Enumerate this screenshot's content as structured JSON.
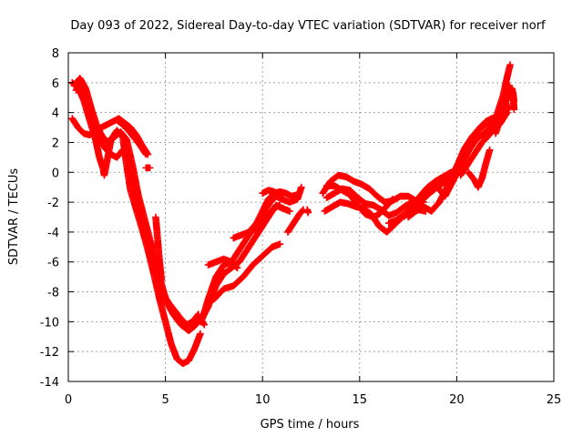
{
  "chart_data": {
    "type": "scatter",
    "title": "Day 093 of 2022, Sidereal Day-to-day VTEC variation (SDTVAR) for receiver norf",
    "xlabel": "GPS time / hours",
    "ylabel": "SDTVAR / TECUs",
    "xlim": [
      0,
      25
    ],
    "ylim": [
      -14,
      8
    ],
    "xticks": [
      "0",
      "5",
      "10",
      "15",
      "20",
      "25"
    ],
    "yticks": [
      "8",
      "6",
      "4",
      "2",
      "0",
      "-2",
      "-4",
      "-6",
      "-8",
      "-10",
      "-12",
      "-14"
    ],
    "grid": true,
    "legend": "none",
    "marker": "plus",
    "series_color": "#ff0000",
    "series": [
      {
        "points": [
          [
            0.2,
            6.0
          ],
          [
            0.5,
            5.7
          ],
          [
            0.8,
            4.8
          ],
          [
            1.1,
            3.5
          ],
          [
            1.4,
            2.2
          ],
          [
            1.6,
            1.0
          ],
          [
            1.8,
            0.2
          ],
          [
            1.85,
            -0.2
          ],
          [
            2.0,
            0.8
          ],
          [
            2.2,
            2.2
          ],
          [
            2.5,
            2.8
          ],
          [
            2.8,
            2.4
          ],
          [
            3.0,
            0.5
          ],
          [
            3.2,
            -1.2
          ],
          [
            3.5,
            -2.5
          ],
          [
            3.8,
            -3.8
          ],
          [
            4.1,
            -5.2
          ],
          [
            4.4,
            -6.8
          ],
          [
            4.7,
            -8.5
          ],
          [
            5.0,
            -10.0
          ],
          [
            5.3,
            -11.5
          ],
          [
            5.6,
            -12.5
          ],
          [
            5.9,
            -12.8
          ],
          [
            6.2,
            -12.6
          ],
          [
            6.5,
            -11.8
          ],
          [
            6.8,
            -10.8
          ]
        ]
      },
      {
        "points": [
          [
            0.3,
            5.8
          ],
          [
            0.6,
            6.3
          ],
          [
            0.9,
            5.6
          ],
          [
            1.2,
            4.2
          ],
          [
            1.5,
            3.0
          ],
          [
            1.8,
            2.3
          ],
          [
            2.1,
            2.0
          ],
          [
            2.4,
            2.4
          ],
          [
            2.7,
            2.7
          ],
          [
            3.0,
            2.2
          ],
          [
            3.3,
            0.5
          ],
          [
            3.6,
            -1.5
          ],
          [
            3.9,
            -3.0
          ],
          [
            4.2,
            -4.5
          ],
          [
            4.5,
            -6.0
          ],
          [
            4.8,
            -7.5
          ],
          [
            5.1,
            -8.8
          ],
          [
            5.4,
            -9.5
          ],
          [
            5.8,
            -10.2
          ],
          [
            6.2,
            -10.6
          ],
          [
            6.5,
            -10.3
          ],
          [
            6.8,
            -9.8
          ],
          [
            7.0,
            -10.2
          ]
        ]
      },
      {
        "points": [
          [
            0.4,
            5.5
          ],
          [
            0.7,
            6.0
          ],
          [
            1.0,
            4.8
          ],
          [
            1.3,
            3.3
          ],
          [
            1.6,
            2.3
          ],
          [
            1.9,
            1.6
          ],
          [
            2.2,
            1.2
          ],
          [
            2.5,
            1.0
          ],
          [
            2.8,
            1.5
          ],
          [
            3.1,
            1.0
          ],
          [
            3.4,
            -0.8
          ],
          [
            3.7,
            -2.5
          ],
          [
            4.0,
            -4.2
          ],
          [
            4.3,
            -5.8
          ],
          [
            4.6,
            -7.2
          ],
          [
            4.9,
            -8.2
          ],
          [
            5.2,
            -8.8
          ],
          [
            5.5,
            -9.3
          ],
          [
            5.8,
            -9.8
          ],
          [
            6.1,
            -10.2
          ],
          [
            6.4,
            -10.0
          ],
          [
            6.7,
            -9.5
          ]
        ]
      },
      {
        "points": [
          [
            0.2,
            3.6
          ],
          [
            0.5,
            3.0
          ],
          [
            0.8,
            2.6
          ],
          [
            1.1,
            2.5
          ],
          [
            1.4,
            2.8
          ],
          [
            1.7,
            3.0
          ],
          [
            2.0,
            3.2
          ],
          [
            2.3,
            3.4
          ],
          [
            2.6,
            3.6
          ],
          [
            2.9,
            3.3
          ],
          [
            3.2,
            3.0
          ],
          [
            3.5,
            2.5
          ],
          [
            3.8,
            1.8
          ],
          [
            4.1,
            1.2
          ]
        ]
      },
      {
        "points": [
          [
            2.5,
            3.5
          ],
          [
            2.8,
            3.2
          ],
          [
            3.1,
            2.8
          ],
          [
            3.4,
            2.3
          ],
          [
            3.7,
            1.8
          ],
          [
            4.0,
            1.2
          ]
        ]
      },
      {
        "points": [
          [
            4.0,
            0.3
          ],
          [
            4.2,
            0.3
          ]
        ]
      },
      {
        "points": [
          [
            4.5,
            -3.0
          ],
          [
            4.6,
            -4.5
          ],
          [
            4.7,
            -6.0
          ],
          [
            4.8,
            -7.2
          ]
        ]
      },
      {
        "points": [
          [
            7.2,
            -6.2
          ],
          [
            7.6,
            -6.0
          ],
          [
            8.0,
            -5.8
          ],
          [
            8.4,
            -6.0
          ],
          [
            8.7,
            -6.4
          ]
        ]
      },
      {
        "points": [
          [
            6.9,
            -9.8
          ],
          [
            7.2,
            -8.5
          ],
          [
            7.6,
            -7.0
          ],
          [
            8.0,
            -6.2
          ],
          [
            8.4,
            -6.0
          ],
          [
            8.8,
            -5.2
          ],
          [
            9.2,
            -4.4
          ],
          [
            9.6,
            -3.6
          ],
          [
            10.0,
            -2.8
          ],
          [
            10.4,
            -2.0
          ],
          [
            10.7,
            -1.6
          ],
          [
            11.0,
            -1.8
          ],
          [
            11.4,
            -2.0
          ],
          [
            11.8,
            -1.8
          ],
          [
            12.0,
            -1.0
          ]
        ]
      },
      {
        "points": [
          [
            6.8,
            -10.0
          ],
          [
            7.2,
            -9.0
          ],
          [
            7.6,
            -7.6
          ],
          [
            8.0,
            -6.8
          ],
          [
            8.4,
            -6.4
          ],
          [
            8.8,
            -6.0
          ],
          [
            9.2,
            -5.2
          ],
          [
            9.6,
            -4.4
          ],
          [
            10.0,
            -3.6
          ],
          [
            10.4,
            -2.8
          ],
          [
            10.7,
            -2.2
          ],
          [
            11.0,
            -2.4
          ],
          [
            11.4,
            -2.6
          ]
        ]
      },
      {
        "points": [
          [
            7.5,
            -8.5
          ],
          [
            8.0,
            -7.8
          ],
          [
            8.5,
            -7.6
          ],
          [
            9.0,
            -7.0
          ],
          [
            9.5,
            -6.2
          ],
          [
            10.0,
            -5.6
          ],
          [
            10.5,
            -5.0
          ],
          [
            10.9,
            -4.8
          ]
        ]
      },
      {
        "points": [
          [
            8.5,
            -4.4
          ],
          [
            8.9,
            -4.2
          ],
          [
            9.3,
            -4.0
          ],
          [
            9.7,
            -3.4
          ],
          [
            10.0,
            -2.6
          ],
          [
            10.3,
            -1.8
          ],
          [
            10.6,
            -1.4
          ],
          [
            10.9,
            -1.3
          ],
          [
            11.2,
            -1.4
          ],
          [
            11.5,
            -1.6
          ],
          [
            11.8,
            -1.5
          ]
        ]
      },
      {
        "points": [
          [
            9.6,
            -3.9
          ],
          [
            10.0,
            -3.3
          ],
          [
            10.3,
            -2.8
          ],
          [
            10.6,
            -2.4
          ],
          [
            10.9,
            -2.2
          ]
        ]
      },
      {
        "points": [
          [
            10.0,
            -1.4
          ],
          [
            10.3,
            -1.2
          ],
          [
            10.6,
            -1.3
          ],
          [
            10.9,
            -1.6
          ]
        ]
      },
      {
        "points": [
          [
            11.3,
            -4.0
          ],
          [
            11.6,
            -3.4
          ],
          [
            11.9,
            -2.8
          ],
          [
            12.1,
            -2.5
          ]
        ]
      },
      {
        "points": [
          [
            12.3,
            -2.5
          ],
          [
            12.35,
            -2.7
          ]
        ]
      },
      {
        "points": [
          [
            13.1,
            -1.4
          ],
          [
            13.5,
            -0.6
          ],
          [
            13.9,
            -0.2
          ],
          [
            14.3,
            -0.3
          ],
          [
            14.7,
            -0.6
          ],
          [
            15.1,
            -0.8
          ],
          [
            15.5,
            -1.1
          ],
          [
            15.9,
            -1.6
          ],
          [
            16.3,
            -2.0
          ],
          [
            16.7,
            -1.9
          ],
          [
            17.1,
            -1.6
          ],
          [
            17.5,
            -1.6
          ],
          [
            17.9,
            -1.9
          ],
          [
            18.3,
            -2.0
          ]
        ]
      },
      {
        "points": [
          [
            13.2,
            -2.6
          ],
          [
            13.6,
            -2.3
          ],
          [
            14.0,
            -2.0
          ],
          [
            14.4,
            -2.1
          ],
          [
            14.8,
            -2.3
          ],
          [
            15.2,
            -2.4
          ],
          [
            15.6,
            -2.8
          ],
          [
            16.0,
            -3.6
          ],
          [
            16.4,
            -4.0
          ],
          [
            16.8,
            -3.5
          ],
          [
            17.2,
            -3.0
          ],
          [
            17.6,
            -2.7
          ],
          [
            18.0,
            -2.5
          ],
          [
            18.4,
            -2.6
          ]
        ]
      },
      {
        "points": [
          [
            13.3,
            -1.7
          ],
          [
            13.7,
            -1.4
          ],
          [
            14.1,
            -1.1
          ],
          [
            14.5,
            -1.2
          ],
          [
            14.9,
            -1.7
          ],
          [
            15.3,
            -2.1
          ],
          [
            15.7,
            -2.2
          ],
          [
            16.1,
            -2.5
          ],
          [
            16.5,
            -2.9
          ],
          [
            16.9,
            -2.7
          ],
          [
            17.3,
            -2.3
          ],
          [
            17.7,
            -2.0
          ],
          [
            18.1,
            -2.2
          ]
        ]
      },
      {
        "points": [
          [
            13.3,
            -0.9
          ],
          [
            13.7,
            -0.9
          ],
          [
            14.1,
            -1.2
          ],
          [
            14.5,
            -1.5
          ],
          [
            14.9,
            -2.2
          ],
          [
            15.3,
            -2.8
          ],
          [
            15.7,
            -3.0
          ],
          [
            16.0,
            -2.8
          ],
          [
            16.3,
            -2.4
          ],
          [
            16.7,
            -1.8
          ]
        ]
      },
      {
        "points": [
          [
            16.5,
            -3.4
          ],
          [
            16.9,
            -3.2
          ],
          [
            17.3,
            -2.8
          ],
          [
            17.7,
            -2.3
          ],
          [
            18.1,
            -1.6
          ],
          [
            18.5,
            -1.0
          ],
          [
            18.9,
            -0.6
          ],
          [
            19.3,
            -0.3
          ],
          [
            19.7,
            0.0
          ]
        ]
      },
      {
        "points": [
          [
            17.5,
            -3.0
          ],
          [
            17.9,
            -2.6
          ],
          [
            18.3,
            -2.3
          ],
          [
            18.7,
            -2.6
          ],
          [
            19.1,
            -2.0
          ],
          [
            19.5,
            -1.0
          ],
          [
            19.9,
            0.0
          ],
          [
            20.3,
            1.0
          ],
          [
            20.7,
            2.0
          ],
          [
            21.1,
            2.8
          ],
          [
            21.5,
            3.2
          ],
          [
            21.9,
            3.4
          ],
          [
            22.3,
            3.6
          ],
          [
            22.7,
            4.4
          ]
        ]
      },
      {
        "points": [
          [
            17.8,
            -2.2
          ],
          [
            18.2,
            -1.9
          ],
          [
            18.6,
            -1.4
          ],
          [
            19.0,
            -1.0
          ],
          [
            19.4,
            -1.6
          ],
          [
            19.8,
            -0.6
          ],
          [
            20.2,
            0.4
          ],
          [
            20.6,
            1.4
          ],
          [
            21.0,
            2.2
          ],
          [
            21.4,
            2.6
          ],
          [
            21.8,
            3.0
          ],
          [
            22.2,
            3.2
          ],
          [
            22.6,
            4.0
          ]
        ]
      },
      {
        "points": [
          [
            18.4,
            -1.6
          ],
          [
            18.8,
            -1.1
          ],
          [
            19.2,
            -0.8
          ],
          [
            19.6,
            -0.5
          ],
          [
            20.0,
            0.4
          ],
          [
            20.4,
            1.6
          ],
          [
            20.8,
            2.4
          ],
          [
            21.2,
            3.0
          ],
          [
            21.6,
            3.4
          ],
          [
            22.0,
            3.2
          ],
          [
            22.3,
            3.6
          ]
        ]
      },
      {
        "points": [
          [
            20.2,
            -0.2
          ],
          [
            20.6,
            0.6
          ],
          [
            21.0,
            1.4
          ],
          [
            21.3,
            2.0
          ],
          [
            21.6,
            2.4
          ],
          [
            22.0,
            3.0
          ],
          [
            22.3,
            3.4
          ]
        ]
      },
      {
        "points": [
          [
            20.6,
            0.0
          ],
          [
            20.9,
            -0.5
          ],
          [
            21.1,
            -1.0
          ],
          [
            21.3,
            -0.4
          ],
          [
            21.5,
            0.6
          ],
          [
            21.7,
            1.5
          ]
        ]
      },
      {
        "points": [
          [
            21.2,
            3.0
          ],
          [
            21.5,
            3.4
          ],
          [
            21.8,
            3.6
          ],
          [
            22.1,
            3.7
          ],
          [
            22.4,
            4.5
          ],
          [
            22.7,
            5.8
          ],
          [
            22.9,
            5.3
          ],
          [
            22.95,
            4.2
          ]
        ]
      },
      {
        "points": [
          [
            21.8,
            2.8
          ],
          [
            22.1,
            4.0
          ],
          [
            22.4,
            5.2
          ],
          [
            22.6,
            6.4
          ],
          [
            22.75,
            7.2
          ]
        ]
      },
      {
        "points": [
          [
            22.0,
            2.6
          ],
          [
            22.3,
            3.8
          ],
          [
            22.6,
            5.0
          ],
          [
            22.85,
            5.6
          ],
          [
            22.95,
            4.8
          ]
        ]
      }
    ]
  }
}
